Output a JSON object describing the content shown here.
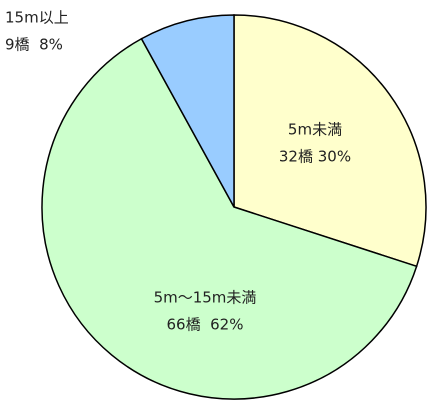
{
  "chart_data": {
    "type": "pie",
    "categories": [
      "5m未満",
      "5m～15m未満",
      "15m以上"
    ],
    "values": [
      30,
      62,
      8
    ],
    "value_labels": [
      "32橋 30%",
      "66橋  62%",
      "9橋  8%"
    ],
    "colors": [
      "#ffffcc",
      "#ccffcc",
      "#99ccff"
    ]
  }
}
